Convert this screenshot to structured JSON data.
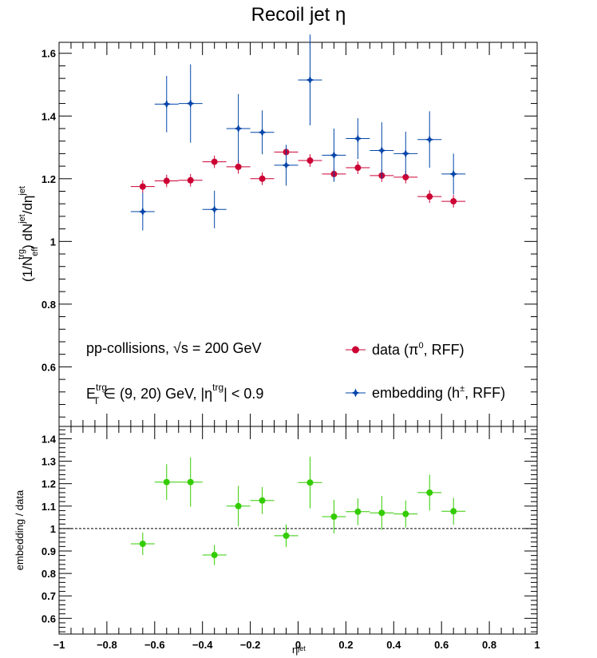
{
  "chart_data": [
    {
      "type": "scatter",
      "title": "Recoil jet η",
      "ylabel": "(1/N_eff^trg) dN^jet/dη^jet",
      "xlim": [
        -1,
        1
      ],
      "ylim": [
        0.41,
        1.635
      ],
      "x_ticks": [
        -1,
        -0.8,
        -0.6,
        -0.4,
        -0.2,
        0,
        0.2,
        0.4,
        0.6,
        0.8,
        1
      ],
      "y_ticks": [
        0.6,
        0.8,
        1,
        1.2,
        1.4,
        1.6
      ],
      "y_tick_labels": [
        "0.6",
        "0.8",
        "1",
        "1.2",
        "1.4",
        "1.6"
      ],
      "annotations": [
        "pp-collisions, √s = 200 GeV",
        "E_T^trg ∈ (9, 20) GeV, |η^trg| < 0.9"
      ],
      "legend": "right",
      "series": [
        {
          "name": "data (π⁰, RFF)",
          "color": "#cc0033",
          "marker": "circle",
          "x": [
            -0.65,
            -0.55,
            -0.45,
            -0.35,
            -0.25,
            -0.15,
            -0.05,
            0.05,
            0.15,
            0.25,
            0.35,
            0.45,
            0.55,
            0.65
          ],
          "y": [
            1.175,
            1.193,
            1.195,
            1.254,
            1.238,
            1.2,
            1.285,
            1.258,
            1.215,
            1.235,
            1.21,
            1.205,
            1.143,
            1.128
          ],
          "yerr": [
            0.02,
            0.02,
            0.02,
            0.02,
            0.022,
            0.02,
            0.02,
            0.02,
            0.02,
            0.02,
            0.02,
            0.02,
            0.02,
            0.02
          ]
        },
        {
          "name": "embedding (h±, RFF)",
          "color": "#0044aa",
          "marker": "star",
          "x": [
            -0.65,
            -0.55,
            -0.45,
            -0.35,
            -0.25,
            -0.15,
            -0.05,
            0.05,
            0.15,
            0.25,
            0.35,
            0.45,
            0.55,
            0.65
          ],
          "y": [
            1.095,
            1.438,
            1.44,
            1.102,
            1.36,
            1.348,
            1.243,
            1.515,
            1.275,
            1.328,
            1.29,
            1.28,
            1.325,
            1.215
          ],
          "yerr": [
            0.06,
            0.09,
            0.125,
            0.06,
            0.11,
            0.07,
            0.065,
            0.145,
            0.085,
            0.065,
            0.09,
            0.07,
            0.09,
            0.065
          ]
        }
      ]
    },
    {
      "type": "scatter",
      "xlabel": "η^jet",
      "ylabel": "embedding / data",
      "xlim": [
        -1,
        1
      ],
      "ylim": [
        0.53,
        1.455
      ],
      "x_ticks": [
        -1,
        -0.8,
        -0.6,
        -0.4,
        -0.2,
        0,
        0.2,
        0.4,
        0.6,
        0.8,
        1
      ],
      "x_tick_labels": [
        "−1",
        "−0.8",
        "−0.6",
        "−0.4",
        "−0.2",
        "0",
        "0.2",
        "0.4",
        "0.6",
        "0.8",
        "1"
      ],
      "y_ticks": [
        0.6,
        0.7,
        0.8,
        0.9,
        1,
        1.1,
        1.2,
        1.3,
        1.4
      ],
      "y_tick_labels": [
        "0.6",
        "0.7",
        "0.8",
        "0.9",
        "1",
        "1.1",
        "1.2",
        "1.3",
        "1.4"
      ],
      "reference_line": 1,
      "series": [
        {
          "color": "#33cc00",
          "marker": "circle",
          "x": [
            -0.65,
            -0.55,
            -0.45,
            -0.35,
            -0.25,
            -0.15,
            -0.05,
            0.05,
            0.15,
            0.25,
            0.35,
            0.45,
            0.55,
            0.65
          ],
          "y": [
            0.932,
            1.207,
            1.207,
            0.882,
            1.1,
            1.125,
            0.968,
            1.205,
            1.053,
            1.075,
            1.07,
            1.065,
            1.16,
            1.077
          ],
          "yerr": [
            0.05,
            0.08,
            0.11,
            0.045,
            0.09,
            0.06,
            0.05,
            0.115,
            0.075,
            0.06,
            0.075,
            0.06,
            0.08,
            0.06
          ]
        }
      ]
    }
  ]
}
